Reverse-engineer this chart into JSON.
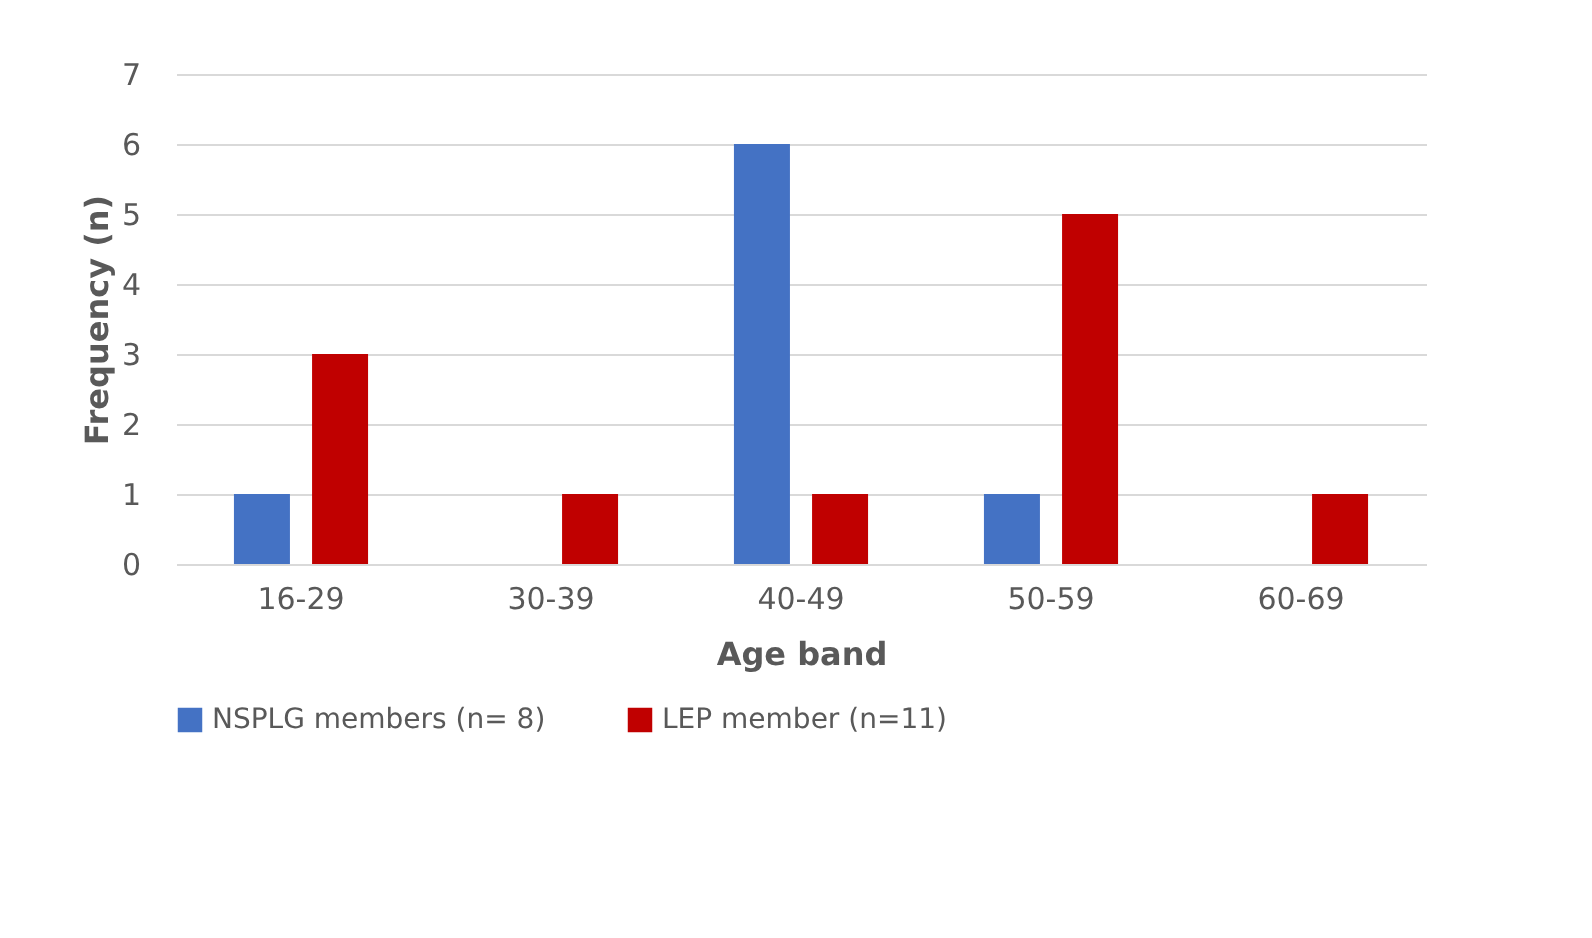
{
  "chart_data": {
    "type": "bar",
    "xlabel": "Age band",
    "ylabel": "Frequency (n)",
    "categories": [
      "16-29",
      "30-39",
      "40-49",
      "50-59",
      "60-69"
    ],
    "series": [
      {
        "name": "NSPLG members (n= 8)",
        "color": "#4472c4",
        "values": [
          1,
          0,
          6,
          1,
          0
        ]
      },
      {
        "name": "LEP member (n=11)",
        "color": "#c00000",
        "values": [
          3,
          1,
          1,
          5,
          1
        ]
      }
    ],
    "ylim": [
      0,
      7
    ],
    "yticks": [
      0,
      1,
      2,
      3,
      4,
      5,
      6,
      7
    ],
    "grid": "y",
    "legend": "bottom"
  }
}
